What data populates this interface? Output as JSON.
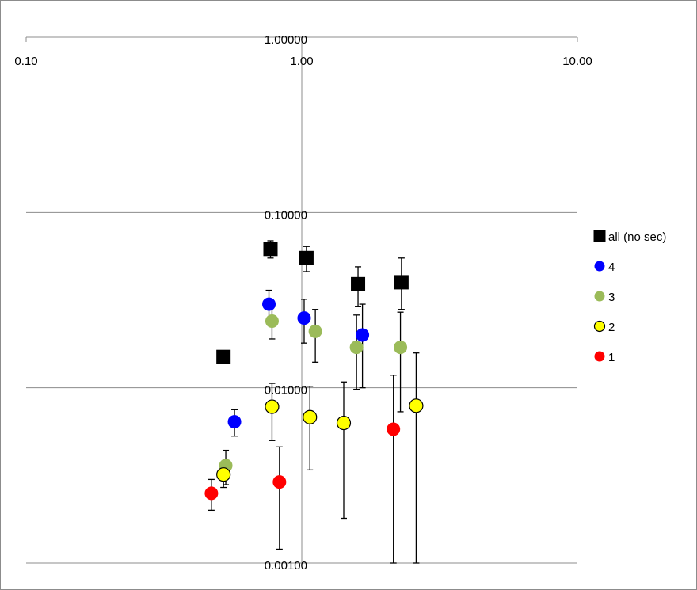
{
  "chart_data": {
    "type": "scatter",
    "title": "",
    "xlabel": "",
    "ylabel": "",
    "x_scale": "log",
    "y_scale": "log",
    "xlim": [
      0.1,
      10
    ],
    "ylim": [
      0.001,
      1
    ],
    "grid": "horizontal major gridlines",
    "x_tick_labels": [
      "0.10",
      "1.00",
      "10.00"
    ],
    "y_tick_labels": [
      "1.00000",
      "0.10000",
      "0.01000",
      "0.00100"
    ],
    "legend_position": "right",
    "series": [
      {
        "name": "all (no sec)",
        "marker": "square",
        "color": "#000000",
        "points": [
          {
            "x": 0.52,
            "y": 0.015,
            "ylo": null,
            "yhi": null
          },
          {
            "x": 0.77,
            "y": 0.062,
            "ylo": 0.055,
            "yhi": 0.069
          },
          {
            "x": 1.04,
            "y": 0.055,
            "ylo": 0.046,
            "yhi": 0.064
          },
          {
            "x": 1.6,
            "y": 0.039,
            "ylo": 0.029,
            "yhi": 0.049
          },
          {
            "x": 2.3,
            "y": 0.04,
            "ylo": 0.028,
            "yhi": 0.055
          }
        ]
      },
      {
        "name": "4",
        "marker": "circle",
        "color": "#0000ff",
        "points": [
          {
            "x": 0.57,
            "y": 0.0064,
            "ylo": 0.0053,
            "yhi": 0.0075
          },
          {
            "x": 0.76,
            "y": 0.03,
            "ylo": 0.024,
            "yhi": 0.036
          },
          {
            "x": 1.02,
            "y": 0.025,
            "ylo": 0.018,
            "yhi": 0.032
          },
          {
            "x": 1.66,
            "y": 0.02,
            "ylo": 0.01,
            "yhi": 0.03
          }
        ]
      },
      {
        "name": "3",
        "marker": "circle",
        "color": "#9bbb59",
        "points": [
          {
            "x": 0.53,
            "y": 0.0036,
            "ylo": 0.0028,
            "yhi": 0.0044
          },
          {
            "x": 0.78,
            "y": 0.024,
            "ylo": 0.019,
            "yhi": 0.029
          },
          {
            "x": 1.12,
            "y": 0.021,
            "ylo": 0.014,
            "yhi": 0.028
          },
          {
            "x": 1.58,
            "y": 0.017,
            "ylo": 0.0098,
            "yhi": 0.026
          },
          {
            "x": 2.28,
            "y": 0.017,
            "ylo": 0.0073,
            "yhi": 0.027
          }
        ]
      },
      {
        "name": "2",
        "marker": "circle",
        "color": "#ffff00",
        "points": [
          {
            "x": 0.52,
            "y": 0.0032,
            "ylo": 0.0027,
            "yhi": 0.0037
          },
          {
            "x": 0.78,
            "y": 0.0078,
            "ylo": 0.005,
            "yhi": 0.0106
          },
          {
            "x": 1.07,
            "y": 0.0068,
            "ylo": 0.0034,
            "yhi": 0.0102
          },
          {
            "x": 1.42,
            "y": 0.0063,
            "ylo": 0.0018,
            "yhi": 0.0108
          },
          {
            "x": 2.6,
            "y": 0.0079,
            "ylo": 0.001,
            "yhi": 0.0158
          }
        ]
      },
      {
        "name": "1",
        "marker": "circle",
        "color": "#ff0000",
        "points": [
          {
            "x": 0.47,
            "y": 0.0025,
            "ylo": 0.002,
            "yhi": 0.003
          },
          {
            "x": 0.83,
            "y": 0.0029,
            "ylo": 0.0012,
            "yhi": 0.0046
          },
          {
            "x": 2.15,
            "y": 0.0058,
            "ylo": 0.001,
            "yhi": 0.0118
          }
        ]
      }
    ]
  }
}
